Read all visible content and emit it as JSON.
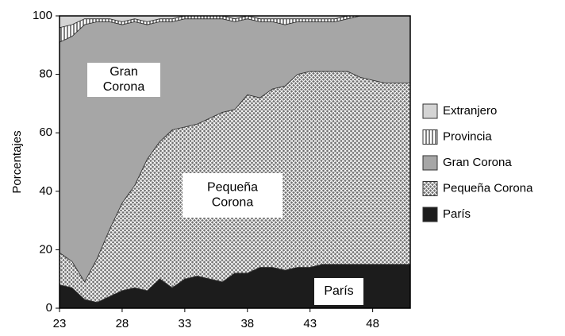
{
  "chart_data": {
    "type": "stacked_area",
    "y_label": "Porcentajes",
    "x": [
      23,
      24,
      25,
      26,
      27,
      28,
      29,
      30,
      31,
      32,
      33,
      34,
      35,
      36,
      37,
      38,
      39,
      40,
      41,
      42,
      43,
      44,
      45,
      46,
      47,
      48,
      49,
      50,
      51
    ],
    "xlim": [
      23,
      51
    ],
    "xticks": [
      23,
      28,
      33,
      38,
      43,
      48
    ],
    "ylim": [
      0,
      100
    ],
    "yticks": [
      0,
      20,
      40,
      60,
      80,
      100
    ],
    "series": [
      {
        "name": "París",
        "color": "#1c1c1c",
        "pattern": "none",
        "values": [
          8,
          7,
          3,
          2,
          4,
          6,
          7,
          6,
          10,
          7,
          10,
          11,
          10,
          9,
          12,
          12,
          14,
          14,
          13,
          14,
          14,
          15,
          15,
          15,
          15,
          15,
          15,
          15,
          15
        ]
      },
      {
        "name": "Pequeña Corona",
        "color": "#8c8c8c",
        "pattern": "crosshatch",
        "values": [
          11,
          9,
          6,
          15,
          23,
          30,
          35,
          45,
          47,
          54,
          52,
          52,
          55,
          58,
          56,
          61,
          58,
          61,
          63,
          66,
          67,
          66,
          66,
          66,
          64,
          63,
          62,
          62,
          62
        ]
      },
      {
        "name": "Gran Corona",
        "color": "#a6a6a6",
        "pattern": "none",
        "values": [
          72,
          77,
          88,
          81,
          71,
          61,
          56,
          46,
          41,
          37,
          37,
          36,
          34,
          32,
          30,
          26,
          26,
          23,
          21,
          18,
          17,
          17,
          17,
          18,
          21,
          22,
          23,
          23,
          23
        ]
      },
      {
        "name": "Provincia",
        "color": "#ffffff",
        "pattern": "vertical",
        "values": [
          5,
          4,
          2,
          1,
          1,
          1,
          1,
          1,
          1,
          1,
          1,
          1,
          1,
          1,
          1,
          1,
          1,
          1,
          2,
          1,
          1,
          1,
          1,
          1,
          0,
          0,
          0,
          0,
          0
        ]
      },
      {
        "name": "Extranjero",
        "color": "#d4d4d4",
        "pattern": "none",
        "values": [
          4,
          3,
          1,
          1,
          1,
          2,
          1,
          2,
          1,
          1,
          0,
          0,
          0,
          0,
          1,
          0,
          1,
          1,
          1,
          1,
          1,
          1,
          1,
          0,
          0,
          0,
          0,
          0,
          0
        ]
      }
    ],
    "annotations": [
      {
        "lines": [
          "Gran",
          "Corona"
        ]
      },
      {
        "lines": [
          "Pequeña",
          "Corona"
        ]
      },
      {
        "lines": [
          "París"
        ]
      }
    ]
  }
}
